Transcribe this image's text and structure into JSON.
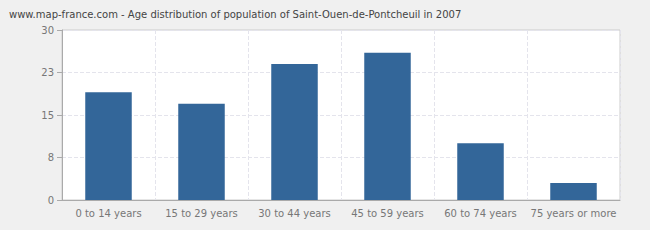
{
  "chart_data": {
    "type": "bar",
    "title": "www.map-france.com - Age distribution of population of Saint-Ouen-de-Pontcheuil in 2007",
    "categories": [
      "0 to 14 years",
      "15 to 29 years",
      "30 to 44 years",
      "45 to 59 years",
      "60 to 74 years",
      "75 years or more"
    ],
    "values": [
      19,
      17,
      24,
      26,
      10,
      3
    ],
    "color": "#336699",
    "ylim": [
      0,
      30
    ],
    "yticks": [
      0,
      {
        "value": 7.5,
        "label": "8"
      },
      15,
      {
        "value": 22.5,
        "label": "23"
      },
      30
    ],
    "grid": true
  }
}
